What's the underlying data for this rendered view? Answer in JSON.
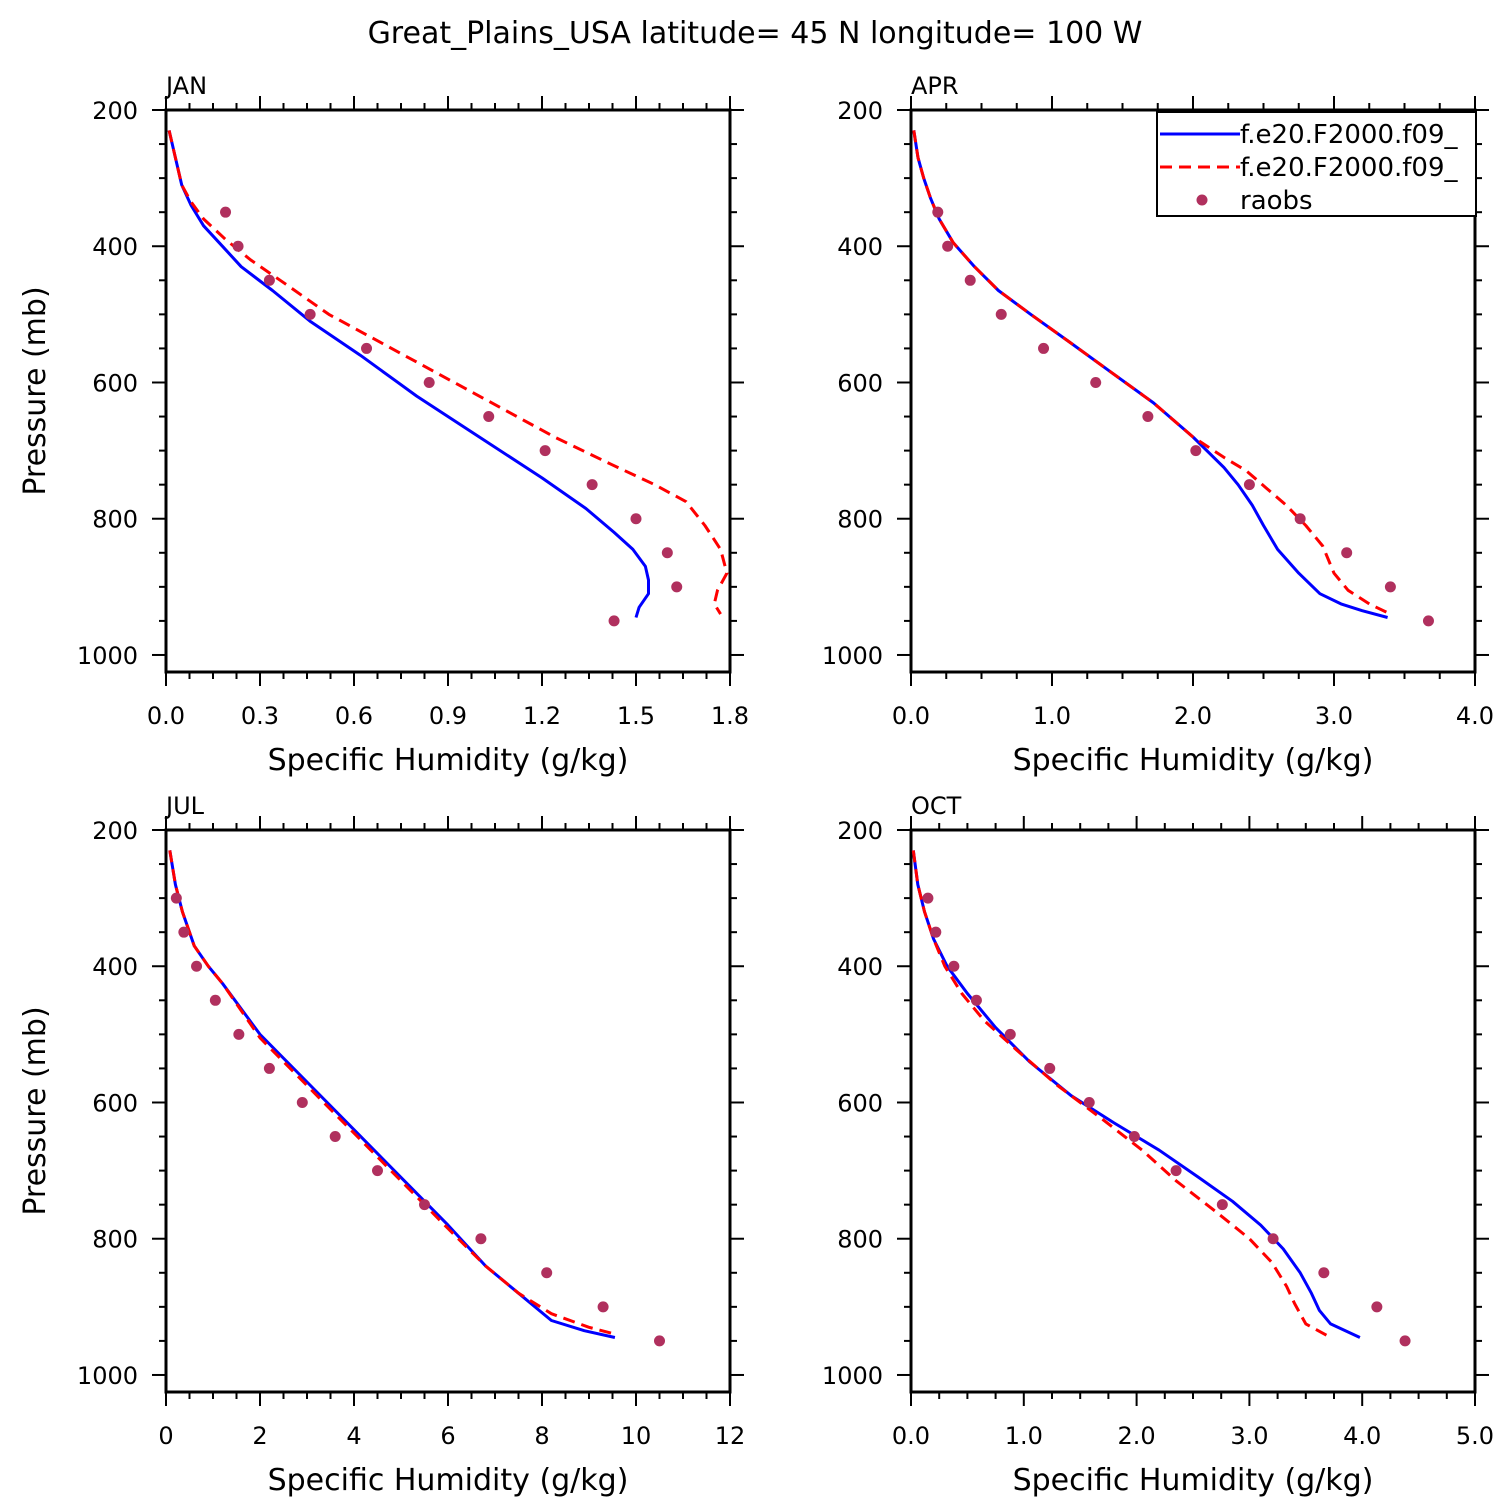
{
  "title": "Great_Plains_USA  latitude= 45 N longitude= 100 W",
  "legend": {
    "placement": "top-right of APR panel",
    "entries": [
      {
        "label": "f.e20.F2000.f09_",
        "style": "solid",
        "color": "#0000ff"
      },
      {
        "label": "f.e20.F2000.f09_",
        "style": "dashed",
        "color": "#ff0000"
      },
      {
        "label": "raobs",
        "style": "dot",
        "color": "#b0305e"
      }
    ]
  },
  "colors": {
    "model1": "#0000ff",
    "model2": "#ff0000",
    "obs": "#b0305e"
  },
  "chart_data": [
    {
      "type": "line",
      "panel_title": "JAN",
      "xlabel": "Specific Humidity (g/kg)",
      "ylabel": "Pressure (mb)",
      "xlim": [
        0,
        1.8
      ],
      "ylim": [
        1025,
        200
      ],
      "x_ticks": [
        "0.0",
        "0.3",
        "0.6",
        "0.9",
        "1.2",
        "1.5",
        "1.8"
      ],
      "y_ticks": [
        "200",
        "400",
        "600",
        "800",
        "1000"
      ],
      "series": [
        {
          "name": "f.e20.F2000.f09_",
          "style": "solid",
          "x": [
            0.01,
            0.03,
            0.05,
            0.08,
            0.12,
            0.18,
            0.24,
            0.34,
            0.46,
            0.62,
            0.8,
            1.0,
            1.2,
            1.34,
            1.43,
            1.49,
            1.53,
            1.54,
            1.54,
            1.51,
            1.5
          ],
          "y": [
            230,
            270,
            310,
            340,
            370,
            400,
            430,
            465,
            510,
            560,
            620,
            680,
            740,
            785,
            820,
            845,
            870,
            890,
            910,
            930,
            945
          ]
        },
        {
          "name": "f.e20.F2000.f09_",
          "style": "dashed",
          "x": [
            0.01,
            0.03,
            0.05,
            0.08,
            0.12,
            0.19,
            0.27,
            0.38,
            0.52,
            0.7,
            0.88,
            1.06,
            1.24,
            1.42,
            1.56,
            1.66,
            1.72,
            1.77,
            1.79,
            1.76,
            1.75,
            1.77
          ],
          "y": [
            230,
            270,
            310,
            335,
            360,
            390,
            420,
            455,
            500,
            545,
            590,
            635,
            680,
            720,
            750,
            775,
            810,
            845,
            880,
            905,
            925,
            940
          ]
        },
        {
          "name": "raobs",
          "style": "dot",
          "x": [
            0.19,
            0.23,
            0.33,
            0.46,
            0.64,
            0.84,
            1.03,
            1.21,
            1.36,
            1.5,
            1.6,
            1.63,
            1.43
          ],
          "y": [
            350,
            400,
            450,
            500,
            550,
            600,
            650,
            700,
            750,
            800,
            850,
            900,
            950
          ]
        }
      ]
    },
    {
      "type": "line",
      "panel_title": "APR",
      "xlabel": "Specific Humidity (g/kg)",
      "ylabel": "",
      "xlim": [
        0,
        4.0
      ],
      "ylim": [
        1025,
        200
      ],
      "x_ticks": [
        "0.0",
        "1.0",
        "2.0",
        "3.0",
        "4.0"
      ],
      "y_ticks": [
        "200",
        "400",
        "600",
        "800",
        "1000"
      ],
      "series": [
        {
          "name": "f.e20.F2000.f09_",
          "style": "solid",
          "x": [
            0.02,
            0.05,
            0.09,
            0.14,
            0.2,
            0.3,
            0.45,
            0.62,
            0.85,
            1.12,
            1.42,
            1.72,
            2.0,
            2.22,
            2.32,
            2.42,
            2.5,
            2.6,
            2.75,
            2.9,
            3.05,
            3.2,
            3.38
          ],
          "y": [
            230,
            270,
            300,
            330,
            360,
            395,
            430,
            465,
            500,
            540,
            585,
            630,
            680,
            725,
            750,
            780,
            810,
            845,
            880,
            910,
            925,
            935,
            945
          ]
        },
        {
          "name": "f.e20.F2000.f09_",
          "style": "dashed",
          "x": [
            0.02,
            0.05,
            0.09,
            0.14,
            0.2,
            0.3,
            0.45,
            0.62,
            0.85,
            1.12,
            1.42,
            1.72,
            2.0,
            2.22,
            2.38,
            2.52,
            2.66,
            2.8,
            2.92,
            3.0,
            3.1,
            3.25,
            3.4
          ],
          "y": [
            230,
            270,
            300,
            330,
            360,
            395,
            430,
            465,
            500,
            540,
            585,
            630,
            680,
            710,
            730,
            755,
            780,
            810,
            840,
            880,
            905,
            925,
            940
          ]
        },
        {
          "name": "raobs",
          "style": "dot",
          "x": [
            0.19,
            0.26,
            0.42,
            0.64,
            0.94,
            1.31,
            1.68,
            2.02,
            2.4,
            2.76,
            3.09,
            3.4,
            3.67
          ],
          "y": [
            350,
            400,
            450,
            500,
            550,
            600,
            650,
            700,
            750,
            800,
            850,
            900,
            950
          ]
        }
      ]
    },
    {
      "type": "line",
      "panel_title": "JUL",
      "xlabel": "Specific Humidity (g/kg)",
      "ylabel": "Pressure (mb)",
      "xlim": [
        0,
        12
      ],
      "ylim": [
        1025,
        200
      ],
      "x_ticks": [
        "0",
        "2",
        "4",
        "6",
        "8",
        "10",
        "12"
      ],
      "y_ticks": [
        "200",
        "400",
        "600",
        "800",
        "1000"
      ],
      "series": [
        {
          "name": "f.e20.F2000.f09_",
          "style": "solid",
          "x": [
            0.08,
            0.2,
            0.35,
            0.6,
            0.9,
            1.2,
            2.0,
            3.0,
            4.0,
            5.0,
            6.0,
            6.8,
            7.5,
            8.2,
            8.9,
            9.55
          ],
          "y": [
            230,
            280,
            320,
            370,
            400,
            425,
            500,
            570,
            640,
            710,
            780,
            840,
            880,
            920,
            935,
            945
          ]
        },
        {
          "name": "f.e20.F2000.f09_",
          "style": "dashed",
          "x": [
            0.08,
            0.2,
            0.35,
            0.6,
            0.9,
            1.2,
            2.0,
            3.0,
            4.0,
            5.0,
            6.0,
            6.8,
            7.5,
            8.2,
            9.0,
            9.55
          ],
          "y": [
            230,
            280,
            320,
            370,
            400,
            425,
            505,
            575,
            645,
            715,
            785,
            840,
            880,
            910,
            930,
            940
          ]
        },
        {
          "name": "raobs",
          "style": "dot",
          "x": [
            0.22,
            0.38,
            0.65,
            1.05,
            1.55,
            2.2,
            2.9,
            3.6,
            4.5,
            5.5,
            6.7,
            8.1,
            9.3,
            10.5
          ],
          "y": [
            300,
            350,
            400,
            450,
            500,
            550,
            600,
            650,
            700,
            750,
            800,
            850,
            900,
            950
          ]
        }
      ]
    },
    {
      "type": "line",
      "panel_title": "OCT",
      "xlabel": "Specific Humidity (g/kg)",
      "ylabel": "",
      "xlim": [
        0,
        5.0
      ],
      "ylim": [
        1025,
        200
      ],
      "x_ticks": [
        "0.0",
        "1.0",
        "2.0",
        "3.0",
        "4.0",
        "5.0"
      ],
      "y_ticks": [
        "200",
        "400",
        "600",
        "800",
        "1000"
      ],
      "series": [
        {
          "name": "f.e20.F2000.f09_",
          "style": "solid",
          "x": [
            0.02,
            0.06,
            0.12,
            0.2,
            0.32,
            0.5,
            0.75,
            1.05,
            1.42,
            1.8,
            2.2,
            2.55,
            2.85,
            3.1,
            3.3,
            3.45,
            3.55,
            3.62,
            3.72,
            3.98
          ],
          "y": [
            230,
            280,
            320,
            360,
            400,
            440,
            490,
            540,
            590,
            630,
            670,
            710,
            745,
            780,
            815,
            850,
            880,
            905,
            925,
            945
          ]
        },
        {
          "name": "f.e20.F2000.f09_",
          "style": "dashed",
          "x": [
            0.02,
            0.06,
            0.12,
            0.2,
            0.3,
            0.45,
            0.65,
            0.95,
            1.3,
            1.7,
            2.05,
            2.35,
            2.7,
            3.0,
            3.2,
            3.33,
            3.4,
            3.5,
            3.72
          ],
          "y": [
            230,
            280,
            320,
            360,
            400,
            440,
            480,
            525,
            575,
            625,
            670,
            715,
            760,
            800,
            835,
            870,
            895,
            925,
            945
          ]
        },
        {
          "name": "raobs",
          "style": "dot",
          "x": [
            0.15,
            0.22,
            0.38,
            0.58,
            0.88,
            1.23,
            1.58,
            1.98,
            2.35,
            2.76,
            3.21,
            3.66,
            4.13,
            4.38
          ],
          "y": [
            300,
            350,
            400,
            450,
            500,
            550,
            600,
            650,
            700,
            750,
            800,
            850,
            900,
            950
          ]
        }
      ]
    }
  ]
}
